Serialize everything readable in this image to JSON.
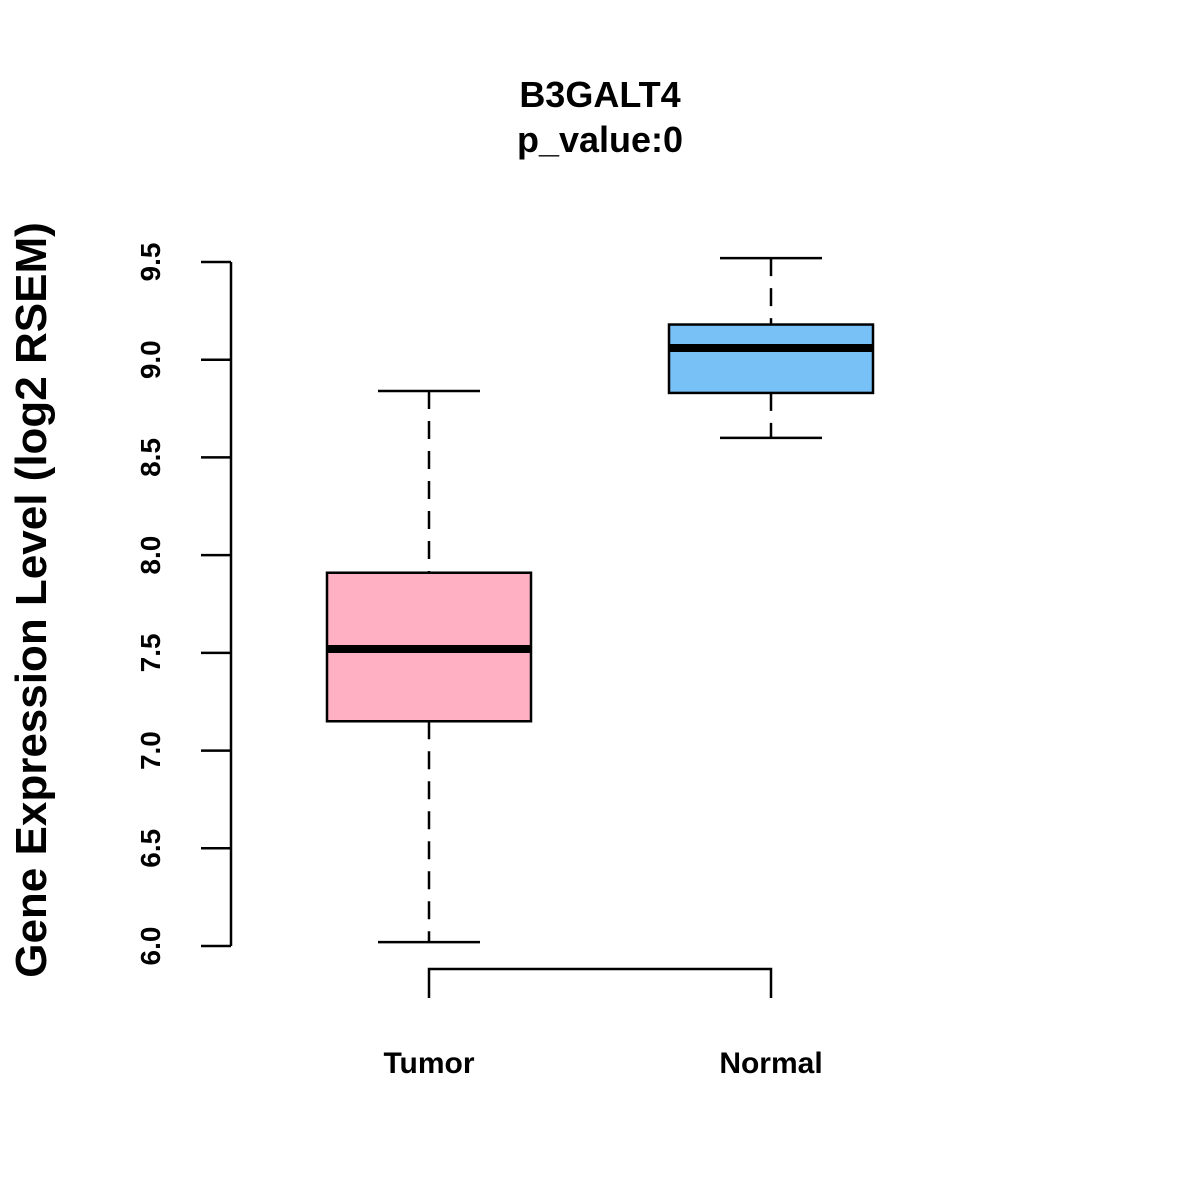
{
  "chart_data": {
    "type": "box",
    "title": "B3GALT4",
    "subtitle": "p_value:0",
    "xlabel": "",
    "ylabel": "Gene Expression Level (log2 RSEM)",
    "ylim": [
      6.0,
      9.5
    ],
    "yticks": [
      "6.0",
      "6.5",
      "7.0",
      "7.5",
      "8.0",
      "8.5",
      "9.0",
      "9.5"
    ],
    "categories": [
      "Tumor",
      "Normal"
    ],
    "boxes": [
      {
        "name": "Tumor",
        "min": 6.02,
        "q1": 7.15,
        "median": 7.52,
        "q3": 7.91,
        "max": 8.84,
        "color": "#FFB0C3"
      },
      {
        "name": "Normal",
        "min": 8.6,
        "q1": 8.83,
        "median": 9.06,
        "q3": 9.18,
        "max": 9.52,
        "color": "#78C1F7"
      }
    ],
    "grid": false,
    "comparison_bracket": [
      "Tumor",
      "Normal"
    ]
  }
}
